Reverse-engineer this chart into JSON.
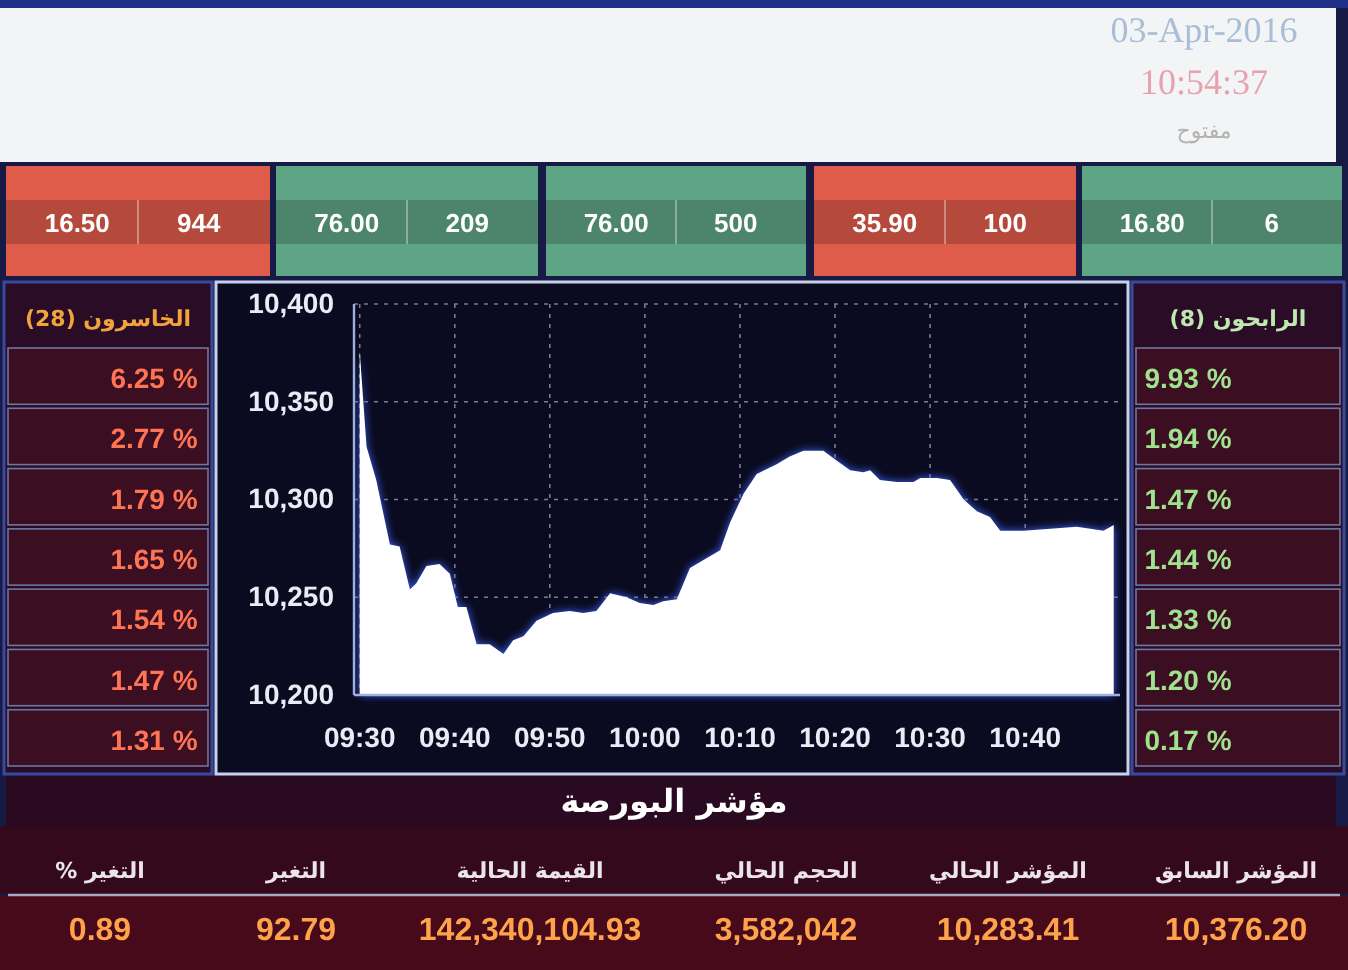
{
  "chart_data": [
    {
      "type": "other",
      "annotations": [
        "03-Apr-2016",
        "10:54:37",
        "مفتوح"
      ]
    },
    {
      "type": "other",
      "color": "#e05c4a",
      "annotations": [
        "16.50",
        "944"
      ]
    },
    {
      "type": "other",
      "color": "#5ea586",
      "annotations": [
        "76.00",
        "209"
      ]
    },
    {
      "type": "other",
      "color": "#5ea586",
      "annotations": [
        "76.00",
        "500"
      ]
    },
    {
      "type": "other",
      "color": "#e05c4a",
      "annotations": [
        "35.90",
        "100"
      ]
    },
    {
      "type": "other",
      "color": "#5ea586",
      "annotations": [
        "16.80",
        "6"
      ]
    },
    {
      "type": "other",
      "title": "الخاسرون (28)",
      "color": "#ff7452",
      "annotations": [
        "6.25 %",
        "2.77 %",
        "1.79 %",
        "1.65 %",
        "1.54 %",
        "1.47 %",
        "1.31 %"
      ]
    },
    {
      "type": "area",
      "title": "مؤشر البورصة",
      "color": "#ffffff",
      "grid": true,
      "x": [
        9.5,
        9.512,
        9.529,
        9.553,
        9.57,
        9.588,
        9.599,
        9.617,
        9.64,
        9.658,
        9.672,
        9.687,
        9.705,
        9.728,
        9.752,
        9.769,
        9.787,
        9.81,
        9.839,
        9.868,
        9.892,
        9.915,
        9.939,
        9.968,
        9.991,
        10.015,
        10.032,
        10.056,
        10.079,
        10.114,
        10.132,
        10.149,
        10.173,
        10.196,
        10.231,
        10.254,
        10.278,
        10.313,
        10.336,
        10.36,
        10.383,
        10.395,
        10.412,
        10.442,
        10.471,
        10.483,
        10.512,
        10.535,
        10.559,
        10.582,
        10.605,
        10.623,
        10.664,
        10.711,
        10.757,
        10.781,
        10.804,
        10.822
      ],
      "values": [
        10376,
        10327,
        10310,
        10277,
        10276,
        10254,
        10257,
        10266,
        10267,
        10262,
        10245,
        10245,
        10226,
        10226,
        10221,
        10228,
        10230,
        10238,
        10242,
        10243,
        10242,
        10243,
        10252,
        10250,
        10247,
        10246,
        10248,
        10249,
        10265,
        10271,
        10274,
        10288,
        10303,
        10313,
        10318,
        10322,
        10325,
        10325,
        10320,
        10315,
        10314,
        10315,
        10310,
        10309,
        10309,
        10311,
        10311,
        10310,
        10300,
        10294,
        10291,
        10284,
        10284,
        10285,
        10286,
        10285,
        10284,
        10287
      ],
      "xlim": [
        9.49,
        10.833
      ],
      "xticks": [
        {
          "value": 9.5,
          "label": "09:30"
        },
        {
          "value": 9.6667,
          "label": "09:40"
        },
        {
          "value": 9.8333,
          "label": "09:50"
        },
        {
          "value": 10,
          "label": "10:00"
        },
        {
          "value": 10.1667,
          "label": "10:10"
        },
        {
          "value": 10.3333,
          "label": "10:20"
        },
        {
          "value": 10.5,
          "label": "10:30"
        },
        {
          "value": 10.6667,
          "label": "10:40"
        }
      ],
      "ylim": [
        10200,
        10400
      ],
      "yticks": [
        {
          "value": 10200,
          "label": "10,200"
        },
        {
          "value": 10250,
          "label": "10,250"
        },
        {
          "value": 10300,
          "label": "10,300"
        },
        {
          "value": 10350,
          "label": "10,350"
        },
        {
          "value": 10400,
          "label": "10,400"
        }
      ]
    },
    {
      "type": "other",
      "title": "الرابحون (8)",
      "color": "#9fe38e",
      "annotations": [
        "9.93 %",
        "1.94 %",
        "1.47 %",
        "1.44 %",
        "1.33 %",
        "1.20 %",
        "0.17 %"
      ]
    },
    {
      "type": "other",
      "annotations": [
        "% التغير",
        "التغير",
        "القيمة الحالية",
        "الحجم الحالي",
        "المؤشر الحالي",
        "المؤشر السابق",
        "0.89",
        "92.79",
        "142,340,104.93",
        "3,582,042",
        "10,283.41",
        "10,376.20"
      ]
    }
  ]
}
